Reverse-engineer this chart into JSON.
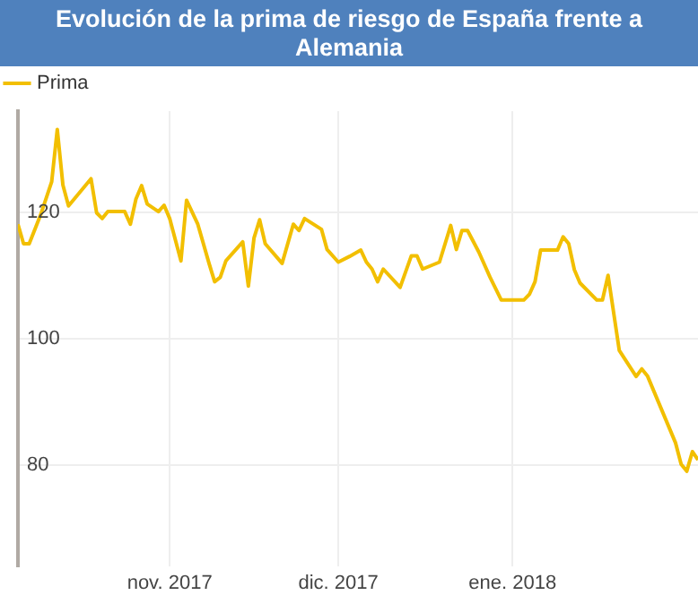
{
  "chart_data": {
    "type": "line",
    "title": "Evolución de la prima de riesgo de España frente a Alemania",
    "x": [
      "2017-10-05",
      "2017-10-06",
      "2017-10-07",
      "2017-10-09",
      "2017-10-11",
      "2017-10-12",
      "2017-10-13",
      "2017-10-14",
      "2017-10-18",
      "2017-10-19",
      "2017-10-20",
      "2017-10-21",
      "2017-10-24",
      "2017-10-25",
      "2017-10-26",
      "2017-10-27",
      "2017-10-28",
      "2017-10-30",
      "2017-10-31",
      "2017-11-01",
      "2017-11-03",
      "2017-11-04",
      "2017-11-06",
      "2017-11-08",
      "2017-11-09",
      "2017-11-10",
      "2017-11-11",
      "2017-11-14",
      "2017-11-15",
      "2017-11-16",
      "2017-11-17",
      "2017-11-18",
      "2017-11-21",
      "2017-11-23",
      "2017-11-24",
      "2017-11-25",
      "2017-11-28",
      "2017-11-29",
      "2017-12-01",
      "2017-12-03",
      "2017-12-05",
      "2017-12-06",
      "2017-12-07",
      "2017-12-08",
      "2017-12-09",
      "2017-12-12",
      "2017-12-14",
      "2017-12-15",
      "2017-12-16",
      "2017-12-19",
      "2017-12-21",
      "2017-12-22",
      "2017-12-23",
      "2017-12-24",
      "2017-12-26",
      "2017-12-28",
      "2017-12-30",
      "2018-01-03",
      "2018-01-04",
      "2018-01-05",
      "2018-01-06",
      "2018-01-09",
      "2018-01-10",
      "2018-01-11",
      "2018-01-12",
      "2018-01-13",
      "2018-01-16",
      "2018-01-17",
      "2018-01-18",
      "2018-01-20",
      "2018-01-23",
      "2018-01-24",
      "2018-01-25",
      "2018-01-30",
      "2018-01-31",
      "2018-02-01",
      "2018-02-02",
      "2018-02-03"
    ],
    "series": [
      {
        "name": "Prima",
        "color": "#f2bf00",
        "values": [
          118.1,
          115.0,
          115.0,
          119.5,
          124.8,
          133.1,
          124.3,
          121.0,
          125.3,
          119.9,
          119.0,
          120.1,
          120.1,
          118.1,
          122.1,
          124.2,
          121.3,
          120.1,
          121.1,
          119.0,
          112.3,
          121.9,
          118.1,
          111.9,
          109.0,
          109.7,
          112.3,
          115.3,
          108.3,
          115.9,
          118.8,
          115.0,
          111.9,
          118.1,
          117.1,
          119.0,
          117.3,
          114.1,
          112.1,
          113.0,
          114.0,
          112.1,
          111.0,
          109.0,
          111.0,
          108.1,
          113.1,
          113.1,
          111.0,
          112.1,
          117.9,
          114.1,
          117.1,
          117.1,
          113.7,
          109.7,
          106.1,
          106.1,
          107.0,
          109.0,
          114.0,
          114.0,
          116.1,
          115.0,
          110.9,
          108.8,
          106.1,
          106.1,
          110.0,
          98.1,
          94.0,
          95.2,
          94.1,
          83.5,
          80.1,
          79.0,
          82.1,
          80.8
        ]
      }
    ],
    "xlim": [
      "2017-10-05",
      "2018-02-03"
    ],
    "xticks": [
      {
        "value": "2017-11-01",
        "label": "nov. 2017"
      },
      {
        "value": "2017-12-01",
        "label": "dic. 2017"
      },
      {
        "value": "2018-01-01",
        "label": "ene. 2018"
      }
    ],
    "ylim": [
      64,
      136
    ],
    "yticks": [
      80,
      100,
      120
    ],
    "grid": true,
    "legend": "top left",
    "marker": "none",
    "line_style": "solid"
  }
}
